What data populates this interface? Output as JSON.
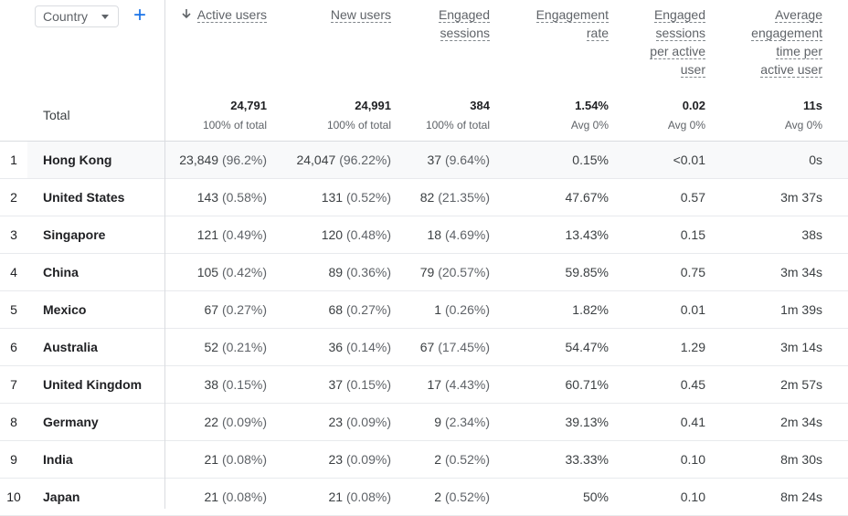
{
  "dimension": {
    "label": "Country"
  },
  "add_label": "+",
  "total_label": "Total",
  "columns": [
    {
      "label": "Active users",
      "total": "24,791",
      "sub": "100% of total",
      "sorted": true
    },
    {
      "label": "New users",
      "total": "24,991",
      "sub": "100% of total"
    },
    {
      "label": "Engaged sessions",
      "total": "384",
      "sub": "100% of total"
    },
    {
      "label": "Engagement rate",
      "total": "1.54%",
      "sub": "Avg 0%"
    },
    {
      "label": "Engaged sessions per active user",
      "total": "0.02",
      "sub": "Avg 0%"
    },
    {
      "label": "Average engagement time per active user",
      "total": "11s",
      "sub": "Avg 0%"
    }
  ],
  "rows": [
    {
      "idx": "1",
      "country": "Hong Kong",
      "active": "23,849",
      "active_pct": "(96.2%)",
      "new": "24,047",
      "new_pct": "(96.22%)",
      "eng": "37",
      "eng_pct": "(9.64%)",
      "rate": "0.15%",
      "per_user": "<0.01",
      "time": "0s"
    },
    {
      "idx": "2",
      "country": "United States",
      "active": "143",
      "active_pct": "(0.58%)",
      "new": "131",
      "new_pct": "(0.52%)",
      "eng": "82",
      "eng_pct": "(21.35%)",
      "rate": "47.67%",
      "per_user": "0.57",
      "time": "3m 37s"
    },
    {
      "idx": "3",
      "country": "Singapore",
      "active": "121",
      "active_pct": "(0.49%)",
      "new": "120",
      "new_pct": "(0.48%)",
      "eng": "18",
      "eng_pct": "(4.69%)",
      "rate": "13.43%",
      "per_user": "0.15",
      "time": "38s"
    },
    {
      "idx": "4",
      "country": "China",
      "active": "105",
      "active_pct": "(0.42%)",
      "new": "89",
      "new_pct": "(0.36%)",
      "eng": "79",
      "eng_pct": "(20.57%)",
      "rate": "59.85%",
      "per_user": "0.75",
      "time": "3m 34s"
    },
    {
      "idx": "5",
      "country": "Mexico",
      "active": "67",
      "active_pct": "(0.27%)",
      "new": "68",
      "new_pct": "(0.27%)",
      "eng": "1",
      "eng_pct": "(0.26%)",
      "rate": "1.82%",
      "per_user": "0.01",
      "time": "1m 39s"
    },
    {
      "idx": "6",
      "country": "Australia",
      "active": "52",
      "active_pct": "(0.21%)",
      "new": "36",
      "new_pct": "(0.14%)",
      "eng": "67",
      "eng_pct": "(17.45%)",
      "rate": "54.47%",
      "per_user": "1.29",
      "time": "3m 14s"
    },
    {
      "idx": "7",
      "country": "United Kingdom",
      "active": "38",
      "active_pct": "(0.15%)",
      "new": "37",
      "new_pct": "(0.15%)",
      "eng": "17",
      "eng_pct": "(4.43%)",
      "rate": "60.71%",
      "per_user": "0.45",
      "time": "2m 57s"
    },
    {
      "idx": "8",
      "country": "Germany",
      "active": "22",
      "active_pct": "(0.09%)",
      "new": "23",
      "new_pct": "(0.09%)",
      "eng": "9",
      "eng_pct": "(2.34%)",
      "rate": "39.13%",
      "per_user": "0.41",
      "time": "2m 34s"
    },
    {
      "idx": "9",
      "country": "India",
      "active": "21",
      "active_pct": "(0.08%)",
      "new": "23",
      "new_pct": "(0.09%)",
      "eng": "2",
      "eng_pct": "(0.52%)",
      "rate": "33.33%",
      "per_user": "0.10",
      "time": "8m 30s"
    },
    {
      "idx": "10",
      "country": "Japan",
      "active": "21",
      "active_pct": "(0.08%)",
      "new": "21",
      "new_pct": "(0.08%)",
      "eng": "2",
      "eng_pct": "(0.52%)",
      "rate": "50%",
      "per_user": "0.10",
      "time": "8m 24s"
    }
  ]
}
